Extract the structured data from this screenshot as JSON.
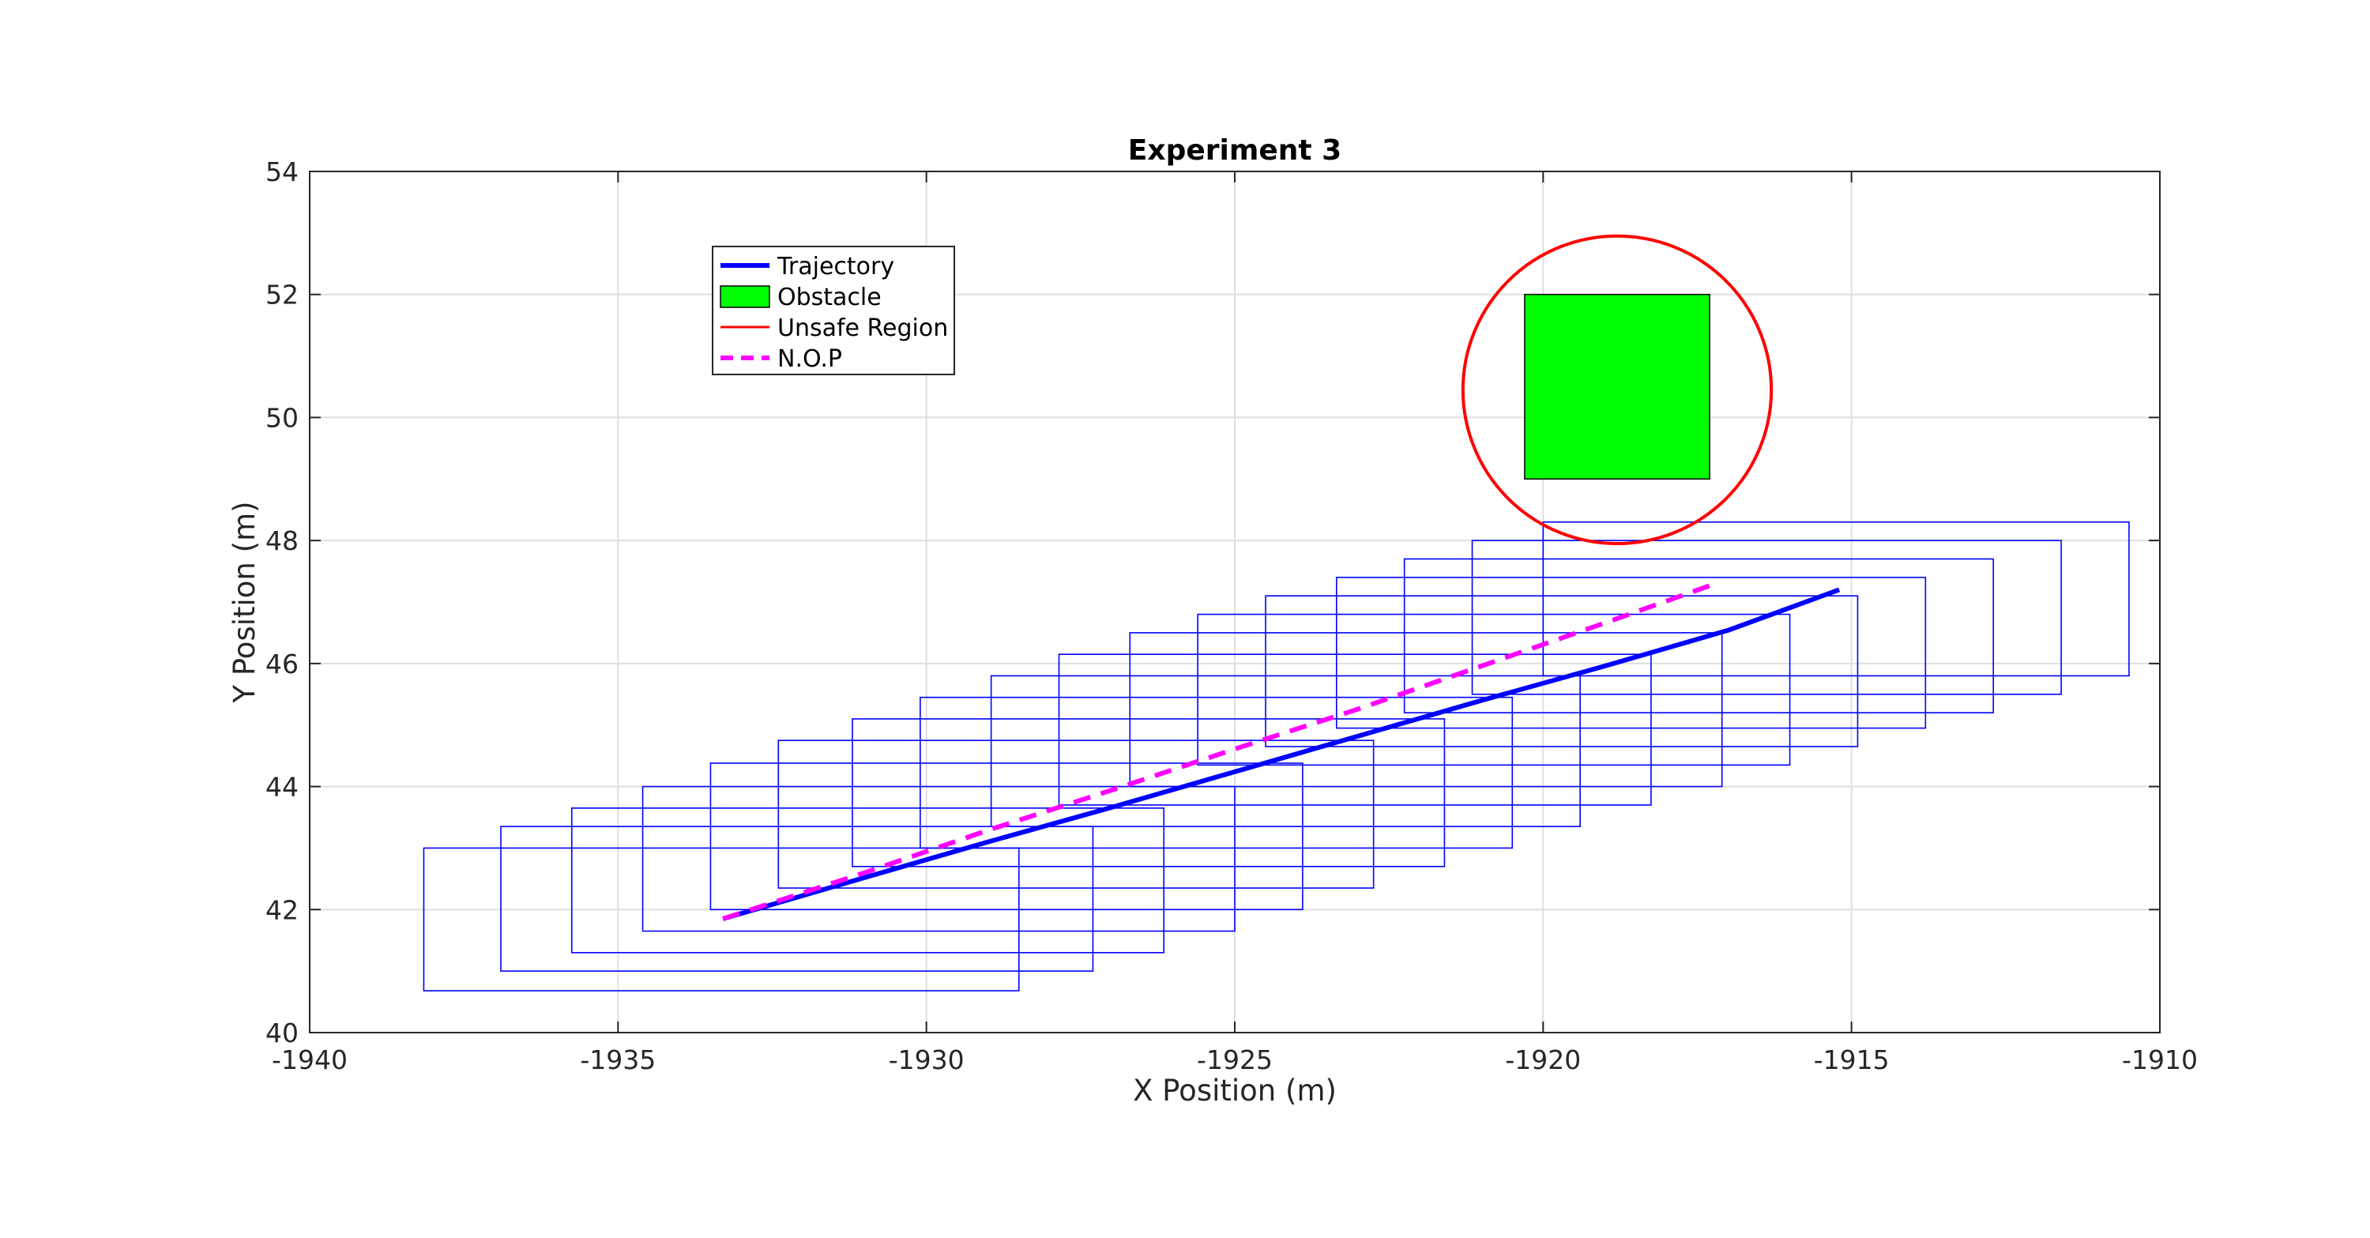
{
  "chart_data": {
    "type": "line",
    "title": "Experiment 3",
    "xlabel": "X Position (m)",
    "ylabel": "Y Position (m)",
    "xlim": [
      -1940,
      -1910
    ],
    "ylim": [
      40,
      54
    ],
    "xticks": [
      -1940,
      -1935,
      -1930,
      -1925,
      -1920,
      -1915,
      -1910
    ],
    "yticks": [
      40,
      42,
      44,
      46,
      48,
      50,
      52,
      54
    ],
    "xtick_labels": [
      "-1940",
      "-1935",
      "-1930",
      "-1925",
      "-1920",
      "-1915",
      "-1910"
    ],
    "ytick_labels": [
      "40",
      "42",
      "44",
      "46",
      "48",
      "50",
      "52",
      "54"
    ],
    "grid": true,
    "legend_position": "top-left",
    "legend": [
      {
        "label": "Trajectory",
        "kind": "line",
        "color": "#0000ff"
      },
      {
        "label": "Obstacle",
        "kind": "patch",
        "color": "#00ff00"
      },
      {
        "label": "Unsafe Region",
        "kind": "line",
        "color": "#ff0000"
      },
      {
        "label": "N.O.P",
        "kind": "dashed",
        "color": "#ff00ff"
      }
    ],
    "series": [
      {
        "name": "Trajectory",
        "color": "#0000ff",
        "style": "solid",
        "x": [
          -1933.3,
          -1931,
          -1929,
          -1927,
          -1925,
          -1923,
          -1921,
          -1919,
          -1917,
          -1915.2
        ],
        "y": [
          41.85,
          42.52,
          43.1,
          43.66,
          44.24,
          44.82,
          45.4,
          45.96,
          46.54,
          47.2
        ]
      },
      {
        "name": "N.O.P",
        "color": "#ff00ff",
        "style": "dashed",
        "x": [
          -1933.3,
          -1931,
          -1929,
          -1927,
          -1925,
          -1923,
          -1921,
          -1919,
          -1917.2
        ],
        "y": [
          41.85,
          42.6,
          43.29,
          43.94,
          44.61,
          45.26,
          45.96,
          46.66,
          47.3
        ]
      }
    ],
    "obstacle": {
      "x_min": -1920.3,
      "x_max": -1917.3,
      "y_min": 49.0,
      "y_max": 52.0,
      "color": "#00ff00"
    },
    "unsafe_region": {
      "center_x": -1918.8,
      "center_y": 50.45,
      "radius": 2.5,
      "color": "#ff0000"
    },
    "reachable_sets": {
      "color": "#0000ff",
      "boxes": [
        {
          "x": [
            -1938.15,
            -1928.5
          ],
          "y": [
            40.68,
            43.0
          ]
        },
        {
          "x": [
            -1936.9,
            -1927.3
          ],
          "y": [
            41.0,
            43.35
          ]
        },
        {
          "x": [
            -1935.75,
            -1926.15
          ],
          "y": [
            41.3,
            43.65
          ]
        },
        {
          "x": [
            -1934.6,
            -1925.0
          ],
          "y": [
            41.65,
            44.0
          ]
        },
        {
          "x": [
            -1933.5,
            -1923.9
          ],
          "y": [
            42.0,
            44.38
          ]
        },
        {
          "x": [
            -1932.4,
            -1922.75
          ],
          "y": [
            42.35,
            44.75
          ]
        },
        {
          "x": [
            -1931.2,
            -1921.6
          ],
          "y": [
            42.7,
            45.1
          ]
        },
        {
          "x": [
            -1930.1,
            -1920.5
          ],
          "y": [
            43.0,
            45.45
          ]
        },
        {
          "x": [
            -1928.95,
            -1919.4
          ],
          "y": [
            43.35,
            45.8
          ]
        },
        {
          "x": [
            -1927.85,
            -1918.25
          ],
          "y": [
            43.7,
            46.15
          ]
        },
        {
          "x": [
            -1926.7,
            -1917.1
          ],
          "y": [
            44.0,
            46.5
          ]
        },
        {
          "x": [
            -1925.6,
            -1916.0
          ],
          "y": [
            44.35,
            46.8
          ]
        },
        {
          "x": [
            -1924.5,
            -1914.9
          ],
          "y": [
            44.65,
            47.1
          ]
        },
        {
          "x": [
            -1923.35,
            -1913.8
          ],
          "y": [
            44.95,
            47.4
          ]
        },
        {
          "x": [
            -1922.25,
            -1912.7
          ],
          "y": [
            45.2,
            47.7
          ]
        },
        {
          "x": [
            -1921.15,
            -1911.6
          ],
          "y": [
            45.5,
            48.0
          ]
        },
        {
          "x": [
            -1920.0,
            -1910.5
          ],
          "y": [
            45.8,
            48.3
          ]
        }
      ]
    }
  }
}
